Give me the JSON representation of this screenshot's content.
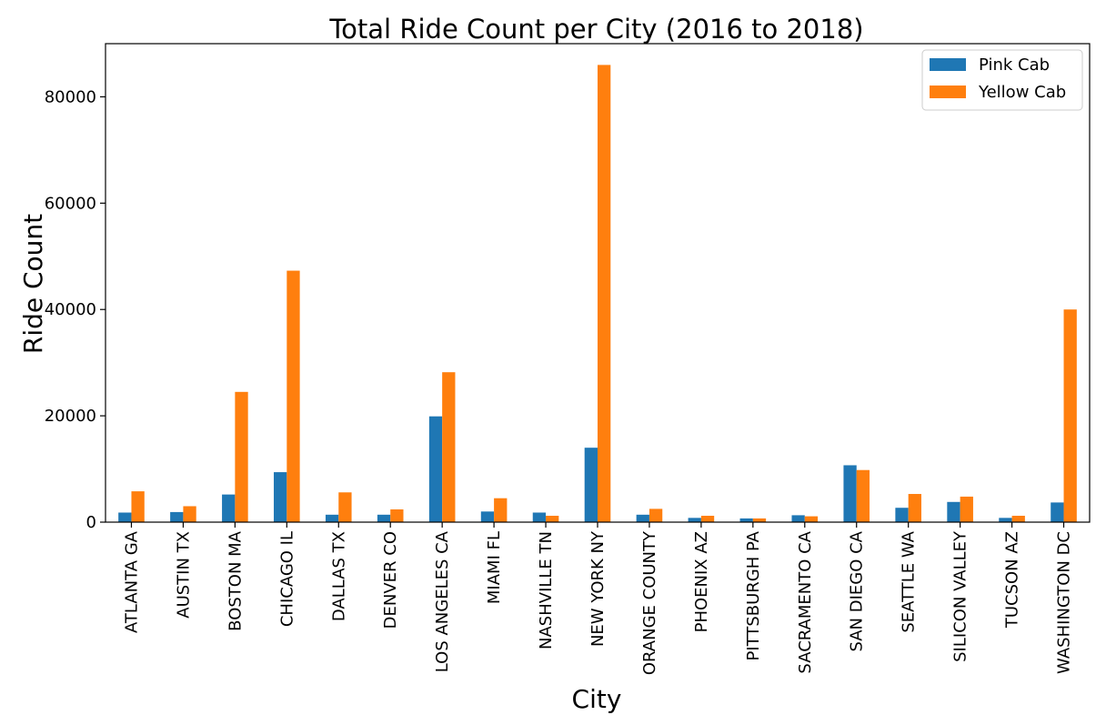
{
  "chart_data": {
    "type": "bar",
    "title": "Total Ride Count per City (2016 to 2018)",
    "xlabel": "City",
    "ylabel": "Ride Count",
    "ylim": [
      0,
      90000
    ],
    "yticks": [
      0,
      20000,
      40000,
      60000,
      80000
    ],
    "grid": false,
    "legend_position": "top-right",
    "categories": [
      "ATLANTA GA",
      "AUSTIN TX",
      "BOSTON MA",
      "CHICAGO IL",
      "DALLAS TX",
      "DENVER CO",
      "LOS ANGELES CA",
      "MIAMI FL",
      "NASHVILLE TN",
      "NEW YORK NY",
      "ORANGE COUNTY",
      "PHOENIX AZ",
      "PITTSBURGH PA",
      "SACRAMENTO CA",
      "SAN DIEGO CA",
      "SEATTLE WA",
      "SILICON VALLEY",
      "TUCSON AZ",
      "WASHINGTON DC"
    ],
    "series": [
      {
        "name": "Pink Cab",
        "color": "#1f77b4",
        "values": [
          1800,
          1900,
          5200,
          9400,
          1400,
          1400,
          19900,
          2000,
          1800,
          14000,
          1400,
          800,
          700,
          1300,
          10700,
          2700,
          3800,
          800,
          3700
        ]
      },
      {
        "name": "Yellow Cab",
        "color": "#ff7f0e",
        "values": [
          5800,
          3000,
          24500,
          47300,
          5600,
          2400,
          28200,
          4500,
          1200,
          86000,
          2500,
          1200,
          700,
          1100,
          9800,
          5300,
          4800,
          1200,
          40000
        ]
      }
    ]
  }
}
